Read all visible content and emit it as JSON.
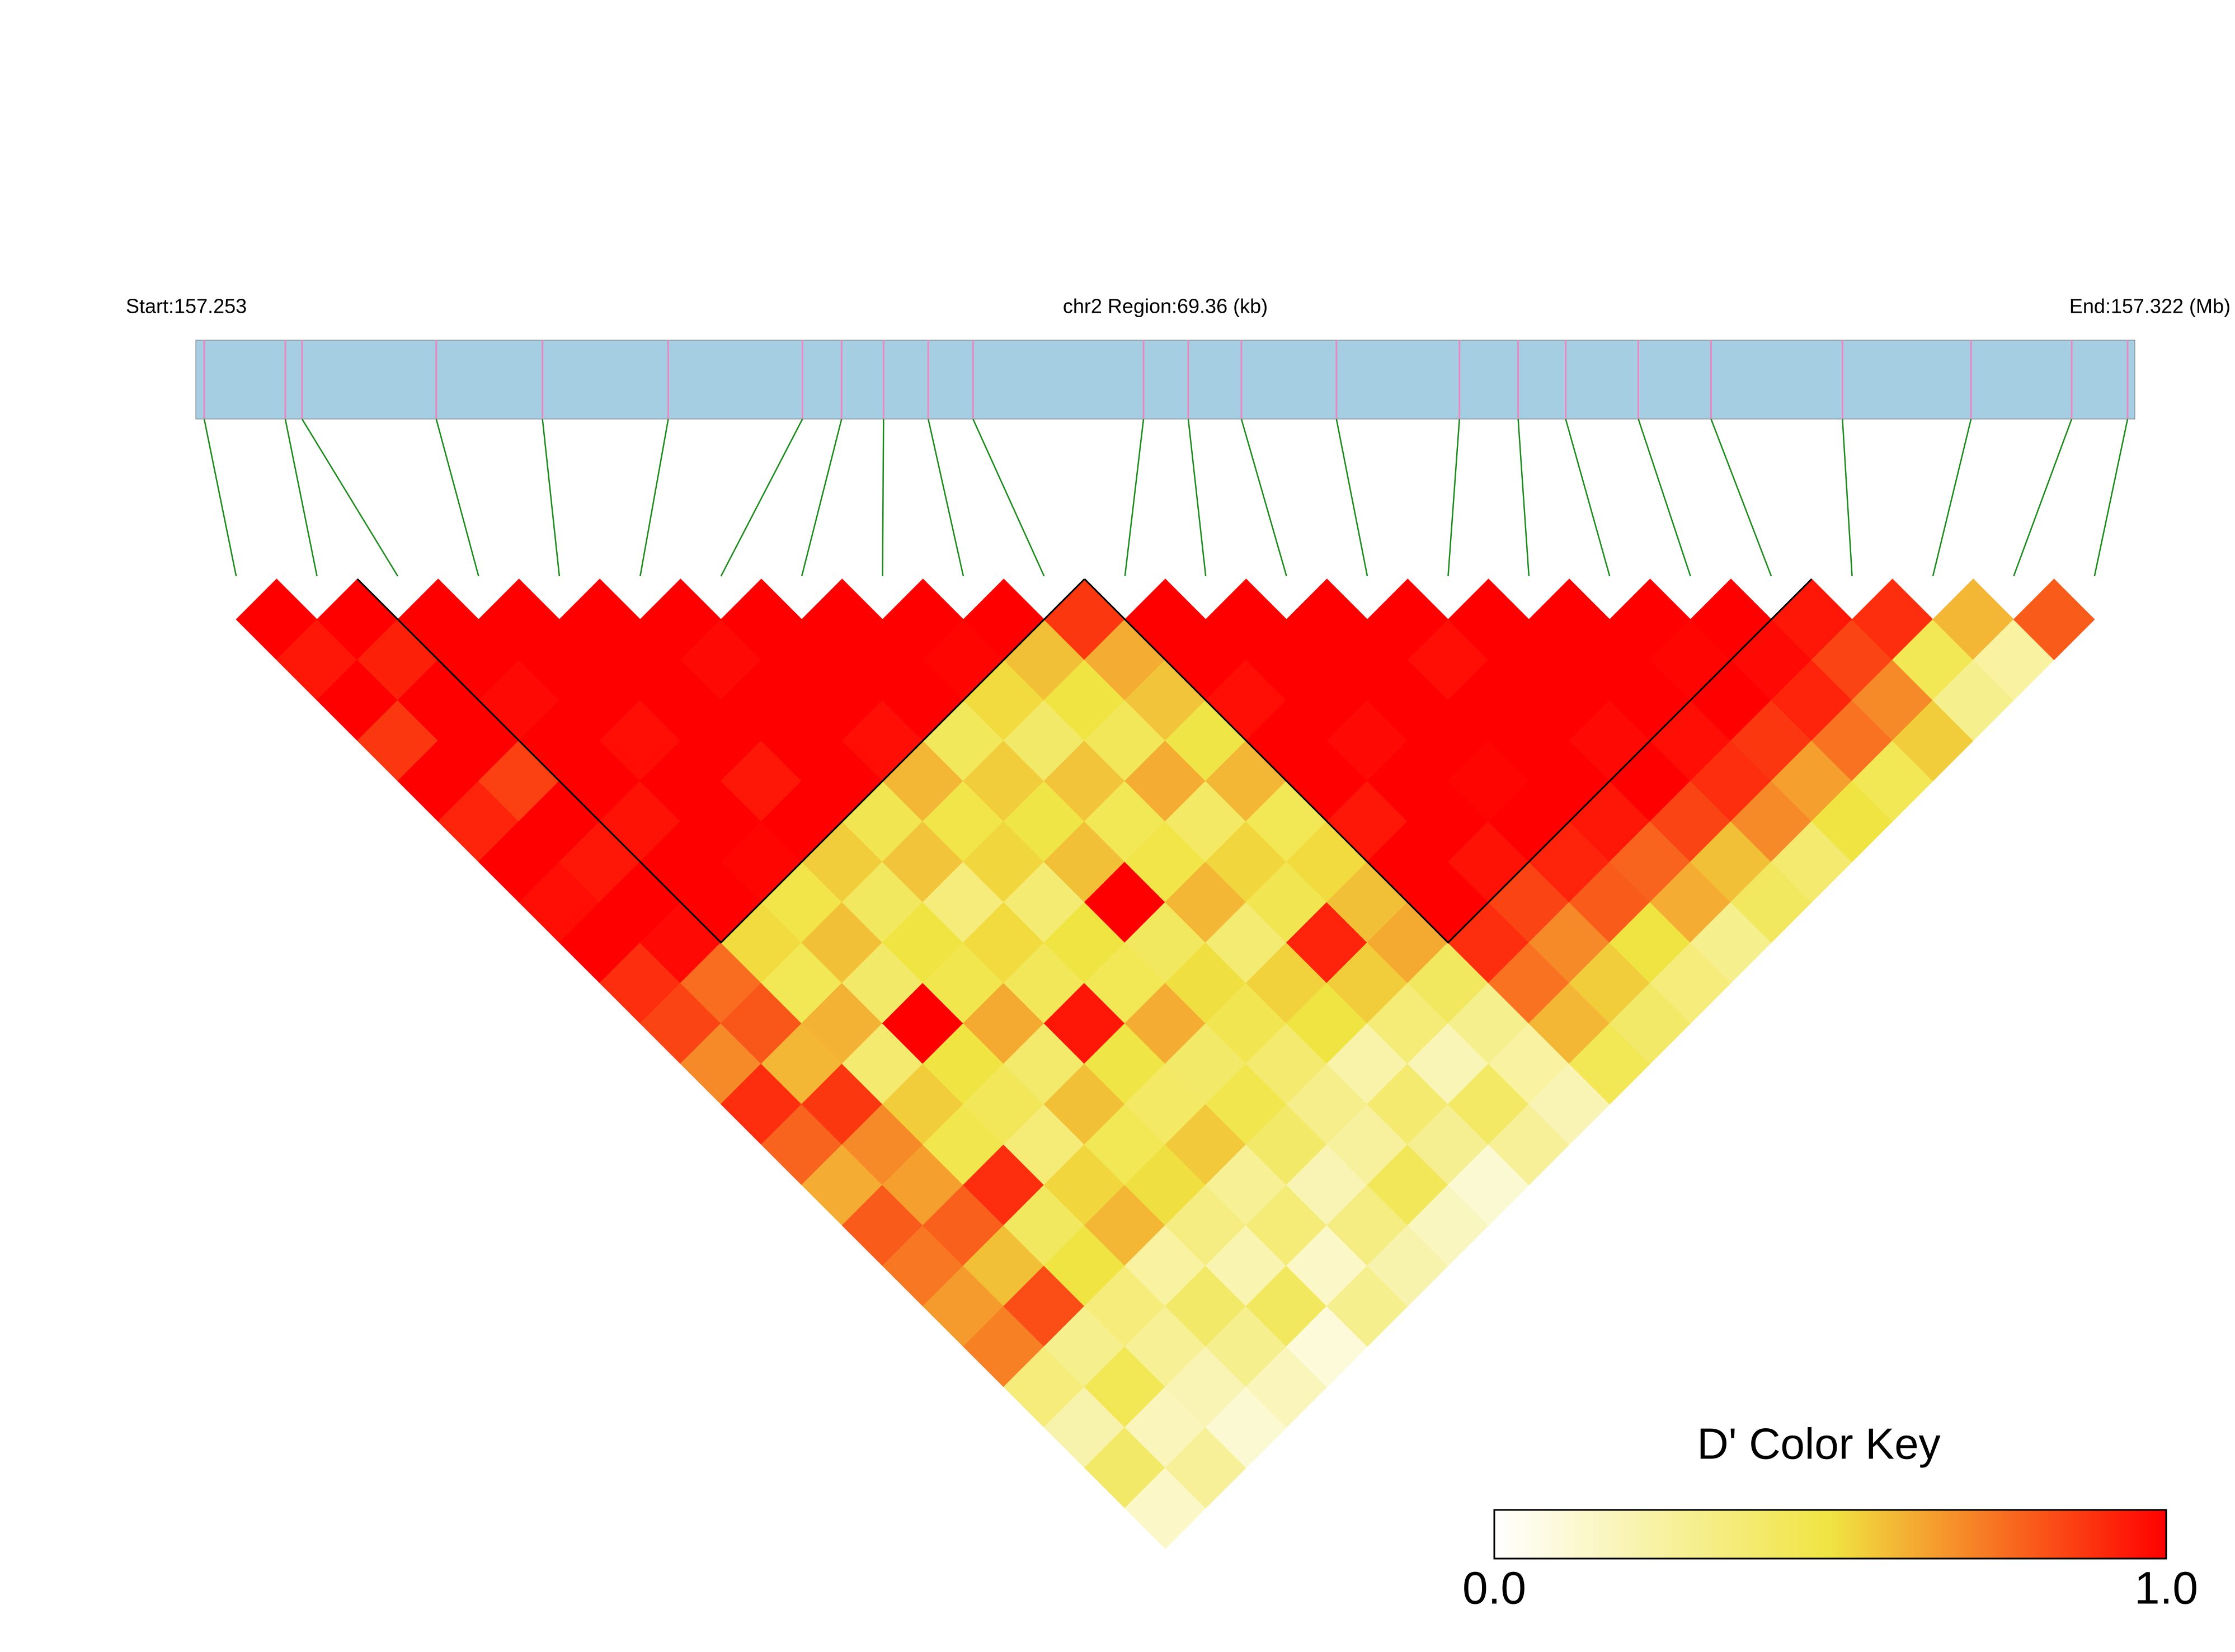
{
  "chart_data": {
    "type": "ld_heatmap",
    "title_left": "Start:157.253",
    "title_center": "chr2 Region:69.36 (kb)",
    "title_right": "End:157.322 (Mb)",
    "x": [
      0.3,
      3.2,
      3.8,
      8.6,
      12.4,
      16.9,
      21.7,
      23.1,
      24.6,
      26.2,
      27.8,
      33.9,
      35.5,
      37.4,
      40.8,
      45.2,
      47.3,
      49.0,
      51.6,
      54.2,
      58.9,
      63.5,
      67.1,
      69.1
    ],
    "xlim": [
      0,
      69.36
    ],
    "matrix": [
      [
        1,
        0.95,
        1,
        0.88,
        1,
        0.92,
        1,
        0.97,
        1,
        0.9,
        0.85,
        0.7,
        0.9,
        0.78,
        0.62,
        0.8,
        0.74,
        0.66,
        0.72,
        0.35,
        0.22,
        0.4,
        0.15
      ],
      [
        1,
        0.93,
        1,
        1,
        0.86,
        1,
        0.95,
        1,
        0.98,
        0.76,
        0.81,
        0.6,
        0.88,
        0.7,
        0.65,
        0.79,
        0.58,
        0.83,
        0.3,
        0.45,
        0.18,
        0.27
      ],
      [
        1,
        1,
        0.98,
        1,
        1,
        0.96,
        1,
        1,
        0.52,
        0.45,
        0.61,
        0.38,
        0.55,
        0.47,
        0.9,
        0.42,
        0.5,
        0.35,
        0.28,
        0.2,
        0.12
      ],
      [
        1,
        1,
        1,
        0.97,
        1,
        1,
        0.99,
        0.48,
        0.58,
        0.4,
        1,
        0.5,
        0.44,
        0.36,
        0.53,
        0.6,
        0.25,
        0.4,
        0.3,
        0.18
      ],
      [
        1,
        1,
        1,
        1,
        0.95,
        1,
        0.55,
        0.42,
        0.5,
        0.47,
        0.63,
        0.39,
        0.58,
        0.45,
        0.51,
        0.33,
        0.21,
        0.42,
        0.1
      ],
      [
        1,
        0.98,
        1,
        1,
        1,
        0.46,
        0.57,
        0.35,
        0.52,
        0.44,
        0.95,
        0.49,
        0.41,
        0.56,
        0.28,
        0.36,
        0.15,
        0.3
      ],
      [
        1,
        1,
        1,
        0.97,
        0.6,
        0.48,
        0.53,
        0.37,
        0.5,
        0.45,
        0.62,
        0.4,
        0.47,
        0.4,
        0.2,
        0.33,
        0.22
      ],
      [
        1,
        1,
        1,
        0.43,
        0.55,
        0.49,
        0.58,
        1,
        0.42,
        0.51,
        0.46,
        0.38,
        0.31,
        0.26,
        0.44,
        0.17
      ],
      [
        1,
        0.99,
        0.52,
        0.4,
        0.57,
        0.45,
        0.48,
        0.6,
        0.37,
        0.54,
        0.5,
        0.23,
        0.38,
        0.29,
        0.12
      ],
      [
        1,
        0.58,
        0.5,
        0.44,
        0.62,
        0.41,
        0.53,
        0.46,
        0.92,
        0.55,
        0.36,
        0.19,
        0.41,
        0.27
      ],
      [
        0.88,
        0.62,
        0.57,
        0.49,
        0.6,
        0.45,
        0.52,
        0.58,
        0.63,
        0.42,
        0.3,
        0.25,
        0.2
      ],
      [
        1,
        1,
        0.97,
        1,
        1,
        0.95,
        1,
        1,
        0.9,
        0.75,
        0.6,
        0.45
      ],
      [
        1,
        1,
        1,
        0.98,
        1,
        1,
        0.96,
        0.85,
        0.7,
        0.55,
        0.4
      ],
      [
        1,
        1,
        1,
        1,
        0.99,
        1,
        0.92,
        0.8,
        0.5,
        0.35
      ],
      [
        1,
        0.97,
        1,
        1,
        1,
        0.95,
        0.78,
        0.62,
        0.3
      ],
      [
        1,
        1,
        1,
        0.98,
        1,
        0.85,
        0.58,
        0.42
      ],
      [
        1,
        1,
        1,
        0.97,
        0.9,
        0.7,
        0.38
      ],
      [
        1,
        0.99,
        1,
        0.88,
        0.65,
        0.5
      ],
      [
        1,
        0.98,
        0.92,
        0.75,
        0.45
      ],
      [
        0.95,
        0.85,
        0.7,
        0.55
      ],
      [
        0.9,
        0.45,
        0.3
      ],
      [
        0.6,
        0.25
      ],
      [
        0.8
      ]
    ],
    "blocks": [
      [
        2,
        10
      ],
      [
        11,
        19
      ]
    ],
    "colors": [
      "#ffffff",
      "#f0e442",
      "#ff0000"
    ],
    "clim": [
      0,
      1
    ],
    "bar_color": "#a6cee3",
    "snp_color": "#e78ac3",
    "link_color": "#1a8a1a",
    "colorbar": {
      "title": "D' Color Key",
      "ticks": [
        {
          "value": 0,
          "label": "0.0"
        },
        {
          "value": 1,
          "label": "1.0"
        }
      ]
    }
  }
}
